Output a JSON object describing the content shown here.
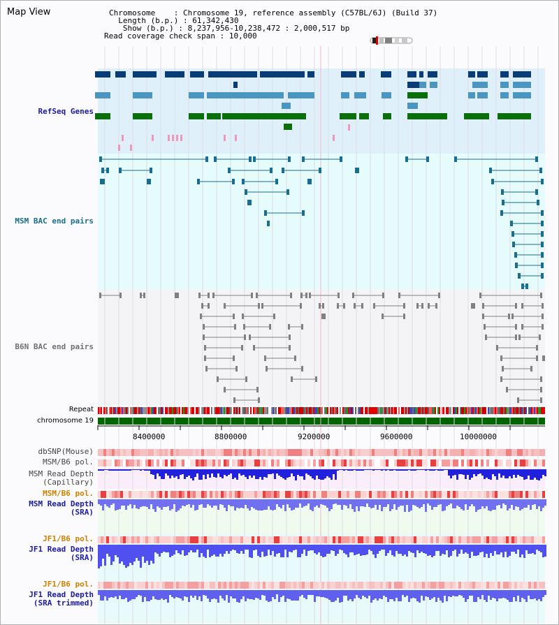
{
  "header": {
    "title": "Map View",
    "chromosome_label": "Chromosome",
    "chromosome_value": "Chromosome 19, reference assembly (C57BL/6J) (Build 37)",
    "length_label": "Length (b.p.)",
    "length_value": "61,342,430",
    "show_label": "Show (b.p.)",
    "show_value": "8,237,956-10,238,472 : 2,000,517 bp",
    "span_label": "Read coverage check span",
    "span_value": "10,000"
  },
  "tracks": {
    "refseq": "RefSeq Genes",
    "msm_bac": "MSM BAC end pairs",
    "b6n_bac": "B6N BAC end pairs",
    "repeat": "Repeat",
    "chromosome": "chromosome 19",
    "dbsnp": "dbSNP(Mouse)",
    "msm_pol1": "MSM/B6 pol.",
    "msm_cap_1": "MSM Read Depth",
    "msm_cap_2": "(Capillary)",
    "msm_pol2": "MSM/B6 pol.",
    "msm_sra_1": "MSM Read Depth",
    "msm_sra_2": "(SRA)",
    "jf1_pol1": "JF1/B6 pol.",
    "jf1_sra_1": "JF1 Read Depth",
    "jf1_sra_2": "(SRA)",
    "jf1_pol2": "JF1/B6 pol.",
    "jf1_trim_1": "JF1 Read Depth",
    "jf1_trim_2": "(SRA trimmed)"
  },
  "axis": {
    "ticks": [
      "8400000",
      "8800000",
      "9200000",
      "9600000",
      "10000000"
    ]
  },
  "colors": {
    "refseq_bg": "#dff0fb",
    "msm_bg": "#e6fbfb",
    "pink_bg": "#fbeefb",
    "green_bg": "#eefbee",
    "navy": "#0a3c78",
    "steel": "#4a96c0",
    "green": "#0a6e0a",
    "teal": "#1a6e8c",
    "gray": "#808080",
    "label_blue": "#1a1aa8",
    "label_orange": "#d08000"
  }
}
